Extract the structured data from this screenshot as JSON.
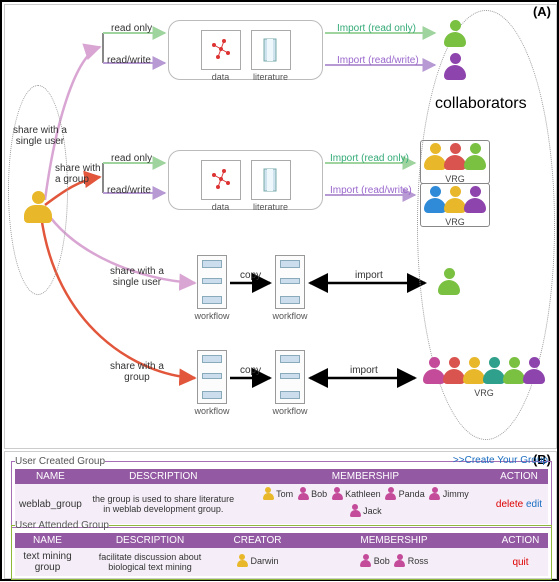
{
  "panels": {
    "a": "(A)",
    "b": "(B)"
  },
  "colors": {
    "green_user": "#7ac142",
    "purple_user": "#8e44ad",
    "yellow_user": "#e8b82a",
    "red_user": "#d9534f",
    "blue_user": "#2f8bd8",
    "pink_user": "#c44b9a",
    "teal_user": "#2fa08b",
    "arrow_pink": "#d9a6d3",
    "arrow_red": "#e2563b",
    "arrow_green": "#9fd49f",
    "arrow_purple": "#b79ad3",
    "arrow_black": "#000000",
    "header_purple": "#9459a3",
    "row_bg": "#f5eef8"
  },
  "labels": {
    "share_single": "share with a\nsingle user",
    "share_group": "share with\na group",
    "read_only": "read only",
    "read_write": "read/write",
    "data": "data",
    "literature": "literature",
    "import_ro": "Import (read only)",
    "import_rw": "Import (read/write)",
    "collaborators": "collaborators",
    "vrg": "VRG",
    "copy": "copy",
    "import": "import",
    "workflow": "workflow",
    "share_single_2": "share with a\nsingle user",
    "share_group_2": "share with a\ngroup"
  },
  "section_b": {
    "created": {
      "legend": "User Created Group",
      "create_link": ">>Create Your Group",
      "cols": [
        "NAME",
        "DESCRIPTION",
        "MEMBERSHIP",
        "ACTION"
      ],
      "row": {
        "name": "weblab_group",
        "desc": "the group is used to share literature in weblab development group.",
        "members": [
          {
            "name": "Tom",
            "color": "#e8b82a"
          },
          {
            "name": "Bob",
            "color": "#c44b9a"
          },
          {
            "name": "Kathleen",
            "color": "#c44b9a"
          },
          {
            "name": "Panda",
            "color": "#c44b9a"
          },
          {
            "name": "Jimmy",
            "color": "#c44b9a"
          },
          {
            "name": "Jack",
            "color": "#c44b9a"
          }
        ],
        "actions": {
          "delete": "delete",
          "edit": "edit"
        }
      }
    },
    "attended": {
      "legend": "User Attended Group",
      "cols": [
        "NAME",
        "DESCRIPTION",
        "CREATOR",
        "MEMBERSHIP",
        "ACTION"
      ],
      "row": {
        "name": "text mining group",
        "desc": "facilitate discussion about biological text mining",
        "creator": {
          "name": "Darwin",
          "color": "#e8b82a"
        },
        "members": [
          {
            "name": "Bob",
            "color": "#c44b9a"
          },
          {
            "name": "Ross",
            "color": "#c44b9a"
          }
        ],
        "action": "quit"
      }
    }
  }
}
